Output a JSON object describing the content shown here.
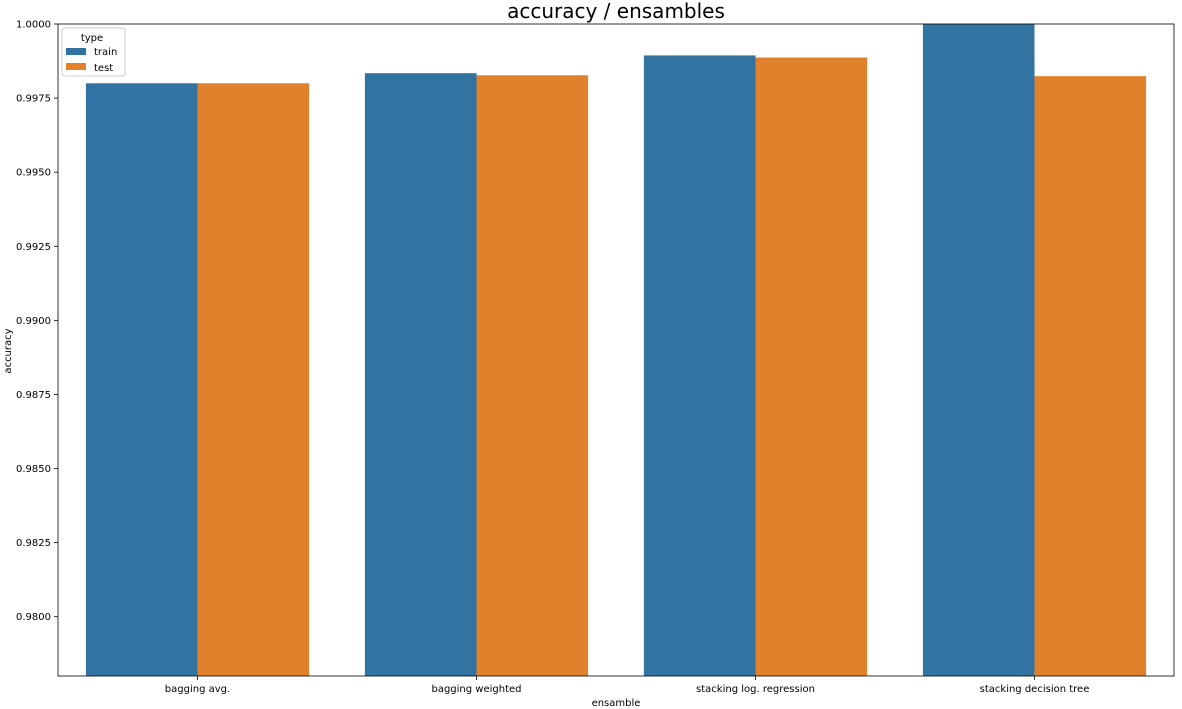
{
  "chart_data": {
    "type": "bar",
    "title": "accuracy / ensambles",
    "xlabel": "ensamble",
    "ylabel": "accuracy",
    "categories": [
      "bagging avg.",
      "bagging weighted",
      "stacking log. regression",
      "stacking decision tree"
    ],
    "series": [
      {
        "name": "train",
        "color": "#3274a1",
        "values": [
          0.998,
          0.99834,
          0.99894,
          1.0
        ]
      },
      {
        "name": "test",
        "color": "#e1812c",
        "values": [
          0.998,
          0.99827,
          0.99887,
          0.99824
        ]
      }
    ],
    "ylim": [
      0.978,
      1.0
    ],
    "yticks": [
      "0.9800",
      "0.9825",
      "0.9850",
      "0.9875",
      "0.9900",
      "0.9925",
      "0.9950",
      "0.9975",
      "1.0000"
    ],
    "legend": {
      "title": "type",
      "placement": "top-left"
    },
    "grid": false
  }
}
